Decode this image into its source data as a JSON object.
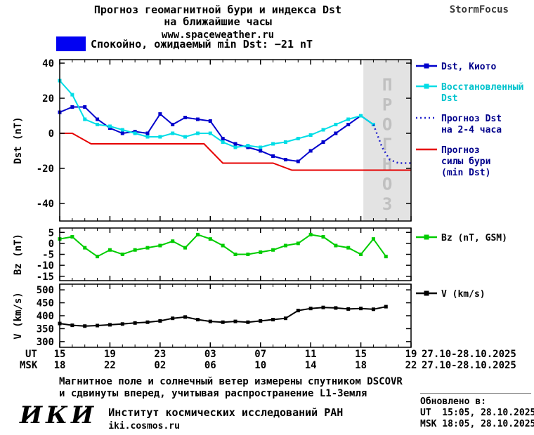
{
  "header": {
    "title_line1": "Прогноз геомагнитной бури и индекса Dst",
    "title_line2": "на ближайшие часы",
    "site": "www.spaceweather.ru",
    "brand": "StormFocus"
  },
  "status": {
    "swatch_color": "#0202f2",
    "label": "Спокойно, ожидаемый min Dst: −21 nT"
  },
  "chart_data": {
    "type": "line",
    "title": "Прогноз геомагнитной бури и индекса Dst на ближайшие часы",
    "panels": [
      {
        "id": "dst",
        "ylabel": "Dst (nT)",
        "ylim": [
          -50,
          42
        ],
        "yticks": [
          40,
          20,
          0,
          -20,
          -40
        ],
        "xlim": [
          0,
          28
        ],
        "forecast_region": {
          "t_start": 24.2,
          "t_end": 28,
          "label": "ПРОГНОЗ",
          "fill": "#e3e3e3",
          "label_color": "#c0c0c0"
        },
        "series": [
          {
            "id": "dst-kyoto",
            "name": "Dst, Киото",
            "color": "#0000cc",
            "label_color": "#00008b",
            "marker": "square",
            "style": "solid",
            "legend_lines": [
              "Dst, Киото"
            ],
            "t": [
              0,
              1,
              2,
              3,
              4,
              5,
              6,
              7,
              8,
              9,
              10,
              11,
              12,
              13,
              14,
              15,
              16,
              17,
              18,
              19,
              20,
              21,
              22,
              23,
              24,
              25
            ],
            "values": [
              12,
              15,
              15,
              8,
              3,
              0,
              1,
              0,
              11,
              5,
              9,
              8,
              7,
              -3,
              -6,
              -8,
              -10,
              -13,
              -15,
              -16,
              -10,
              -5,
              0,
              5,
              10,
              5
            ]
          },
          {
            "id": "restored-dst",
            "name": "Восстановленный Dst",
            "color": "#00dde6",
            "label_color": "#00c3cd",
            "marker": "square",
            "style": "solid",
            "legend_lines": [
              "Восстановленный",
              "Dst"
            ],
            "t": [
              0,
              1,
              2,
              3,
              4,
              5,
              6,
              7,
              8,
              9,
              10,
              11,
              12,
              13,
              14,
              15,
              16,
              17,
              18,
              19,
              20,
              21,
              22,
              23,
              24,
              25
            ],
            "values": [
              30,
              22,
              8,
              5,
              4,
              2,
              0,
              -2,
              -2,
              0,
              -2,
              0,
              0,
              -5,
              -8,
              -7,
              -8,
              -6,
              -5,
              -3,
              -1,
              2,
              5,
              8,
              10,
              5
            ]
          },
          {
            "id": "dst-forecast",
            "name": "Прогноз Dst на 2-4 часа",
            "color": "#2222cc",
            "label_color": "#00008b",
            "marker": "none",
            "style": "dotted",
            "legend_lines": [
              "Прогноз Dst",
              "на 2-4 часа"
            ],
            "t": [
              25,
              25.7,
              26.3,
              27,
              27.6,
              28
            ],
            "values": [
              5,
              -8,
              -15,
              -17,
              -17,
              -17
            ]
          },
          {
            "id": "storm-forecast",
            "name": "Прогноз силы бури (min Dst)",
            "color": "#e60000",
            "label_color": "#00008b",
            "marker": "none",
            "style": "solid",
            "legend_lines": [
              "Прогноз",
              "силы бури",
              "(min Dst)"
            ],
            "t": [
              0,
              1,
              2.5,
              11.5,
              13,
              17,
              18.5,
              28
            ],
            "values": [
              0,
              0,
              -6,
              -6,
              -17,
              -17,
              -21,
              -21
            ]
          }
        ]
      },
      {
        "id": "bz",
        "ylabel": "Bz (nT)",
        "ylim": [
          -17,
          7
        ],
        "yticks": [
          5,
          0,
          -5,
          -10,
          -15
        ],
        "xlim": [
          0,
          28
        ],
        "series": [
          {
            "id": "bz",
            "name": "Bz (nT, GSM)",
            "color": "#00cc00",
            "label_color": "#000000",
            "marker": "square",
            "style": "solid",
            "legend_lines": [
              "Bz (nT, GSM)"
            ],
            "t": [
              0,
              1,
              2,
              3,
              4,
              5,
              6,
              7,
              8,
              9,
              10,
              11,
              12,
              13,
              14,
              15,
              16,
              17,
              18,
              19,
              20,
              21,
              22,
              23,
              24,
              25,
              26
            ],
            "values": [
              2,
              3,
              -2,
              -6,
              -3,
              -5,
              -3,
              -2,
              -1,
              1,
              -2,
              4,
              2,
              -1,
              -5,
              -5,
              -4,
              -3,
              -1,
              0,
              4,
              3,
              -1,
              -2,
              -5,
              2,
              -6
            ]
          }
        ]
      },
      {
        "id": "v",
        "ylabel": "V (km/s)",
        "ylim": [
          278,
          522
        ],
        "yticks": [
          500,
          450,
          400,
          350,
          300
        ],
        "xlim": [
          0,
          28
        ],
        "series": [
          {
            "id": "v",
            "name": "V (km/s)",
            "color": "#000000",
            "label_color": "#000000",
            "marker": "square",
            "style": "solid",
            "legend_lines": [
              "V (km/s)"
            ],
            "t": [
              0,
              1,
              2,
              3,
              4,
              5,
              6,
              7,
              8,
              9,
              10,
              11,
              12,
              13,
              14,
              15,
              16,
              17,
              18,
              19,
              20,
              21,
              22,
              23,
              24,
              25,
              26
            ],
            "values": [
              370,
              363,
              360,
              362,
              365,
              368,
              372,
              375,
              380,
              390,
              395,
              385,
              378,
              375,
              378,
              375,
              380,
              385,
              390,
              420,
              428,
              432,
              430,
              426,
              428,
              425,
              435
            ]
          }
        ]
      }
    ],
    "xaxis": {
      "tick_t": [
        0,
        4,
        8,
        12,
        16,
        20,
        24,
        28
      ],
      "ut_label": "UT",
      "msk_label": "MSK",
      "ut_ticks": [
        "15",
        "19",
        "23",
        "03",
        "07",
        "11",
        "15",
        "19"
      ],
      "msk_ticks": [
        "18",
        "22",
        "02",
        "06",
        "10",
        "14",
        "18",
        "22"
      ],
      "ut_date": "27.10-28.10.2025",
      "msk_date": "27.10-28.10.2025"
    }
  },
  "footer": {
    "note_line1": "Магнитное поле и солнечный ветер измерены спутником DSCOVR",
    "note_line2": "и сдвинуты вперед, учитывая распространение L1-Земля",
    "logo": "ИКИ",
    "institute": "Институт космических исследований РАН",
    "site": "iki.cosmos.ru",
    "updated_label": "Обновлено в:",
    "updated_ut": "UT  15:05, 28.10.2025",
    "updated_msk": "MSK 18:05, 28.10.2025"
  }
}
